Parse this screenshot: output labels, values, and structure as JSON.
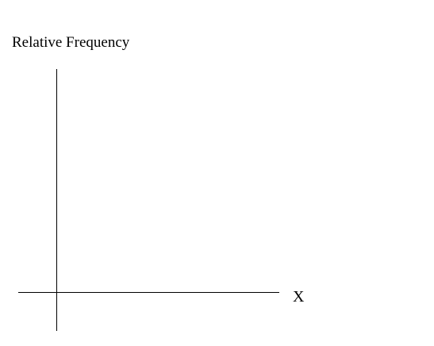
{
  "diagram": {
    "y_axis_label": "Relative Frequency",
    "x_axis_label": "X"
  },
  "colors": {
    "background": "#ffffff",
    "axis": "#000000",
    "text": "#000000"
  }
}
